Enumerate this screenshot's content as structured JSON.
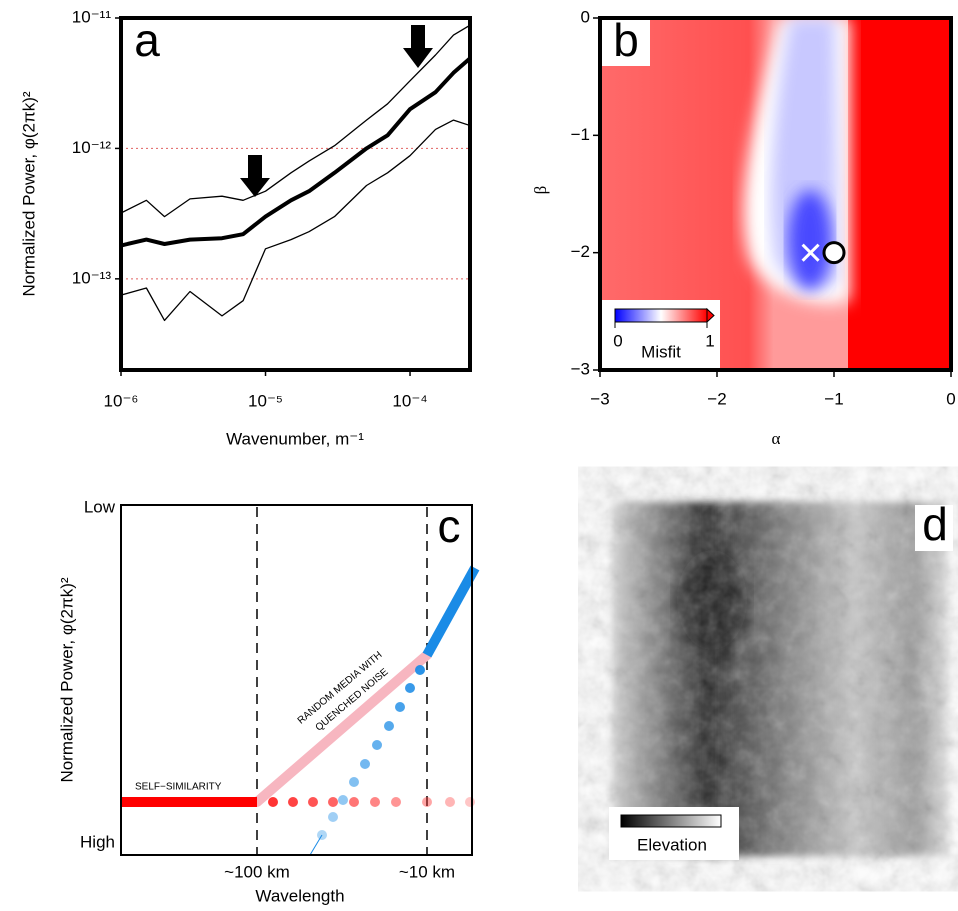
{
  "chart_data": [
    {
      "type": "line",
      "label": "a",
      "xlabel": "Wavenumber, m⁻¹",
      "ylabel": "Normalized Power, φ(2πk)²",
      "xscale": "log",
      "yscale": "log",
      "grid": true,
      "grid_color": "#e06060",
      "xlim": [
        1e-06,
        0.00026
      ],
      "ylim": [
        2e-14,
        1e-11
      ],
      "xticks": [
        {
          "value": 1e-06,
          "label": "10⁻⁶"
        },
        {
          "value": 1e-05,
          "label": "10⁻⁵"
        },
        {
          "value": 0.0001,
          "label": "10⁻⁴"
        }
      ],
      "yticks": [
        {
          "value": 1e-13,
          "label": "10⁻¹³"
        },
        {
          "value": 1e-12,
          "label": "10⁻¹²"
        },
        {
          "value": 1e-11,
          "label": "10⁻¹¹"
        }
      ],
      "x": [
        1e-06,
        1.5e-06,
        2e-06,
        3e-06,
        5e-06,
        7e-06,
        1e-05,
        1.5e-05,
        2e-05,
        3e-05,
        5e-05,
        7e-05,
        0.0001,
        0.00015,
        0.0002,
        0.00026
      ],
      "series": [
        {
          "color": "#000000",
          "linewidth": 1.3,
          "values": [
            3.2e-13,
            4e-13,
            3e-13,
            4.1e-13,
            4.3e-13,
            4e-13,
            4.7e-13,
            6.5e-13,
            8e-13,
            1.05e-12,
            1.65e-12,
            2.2e-12,
            3.3e-12,
            5.2e-12,
            7.4e-12,
            8.8e-12
          ]
        },
        {
          "color": "#000000",
          "linewidth": 4,
          "values": [
            1.8e-13,
            2e-13,
            1.85e-13,
            2e-13,
            2.05e-13,
            2.2e-13,
            3e-13,
            4e-13,
            4.7e-13,
            6.5e-13,
            1e-12,
            1.26e-12,
            2e-12,
            2.7e-12,
            3.8e-12,
            4.9e-12
          ]
        },
        {
          "color": "#000000",
          "linewidth": 1.3,
          "values": [
            7.5e-14,
            8.5e-14,
            4.8e-14,
            8e-14,
            5.2e-14,
            6.8e-14,
            1.7e-13,
            2e-13,
            2.3e-13,
            3e-13,
            5.2e-13,
            6.5e-13,
            8.8e-13,
            1.4e-12,
            1.65e-12,
            1.5e-12
          ]
        }
      ]
    },
    {
      "type": "heatmap",
      "label": "b",
      "xlabel": "α",
      "ylabel": "β",
      "xlim": [
        -3,
        0
      ],
      "ylim": [
        -3,
        0
      ],
      "xticks": [
        {
          "value": -3,
          "label": "−3"
        },
        {
          "value": -2,
          "label": "−2"
        },
        {
          "value": -1,
          "label": "−1"
        },
        0
      ],
      "yticks": [
        {
          "value": -3,
          "label": "−3"
        },
        {
          "value": -2,
          "label": "−2"
        },
        {
          "value": -1,
          "label": "−1"
        },
        0
      ],
      "markers": {
        "x": [
          -1.2,
          -1.0
        ],
        "y": [
          -2,
          -2
        ]
      },
      "colorbar": {
        "label": "Misfit",
        "clim": [
          0,
          1
        ],
        "ticks": [
          0,
          1
        ]
      }
    },
    {
      "type": "diagram",
      "label": "c",
      "ylabel": "Normalized Power, φ(2πk)²",
      "xlabel": "Wavelength",
      "y_top": "Low",
      "y_bottom": "High",
      "x_left": "~100 km",
      "x_right": "~10 km",
      "annotations": [
        "SELF−SIMILARITY",
        "RANDOM MEDIA WITH",
        "QUENCHED NOISE"
      ]
    },
    {
      "type": "image",
      "label": "d",
      "colorbar_label": "Elevation"
    }
  ]
}
